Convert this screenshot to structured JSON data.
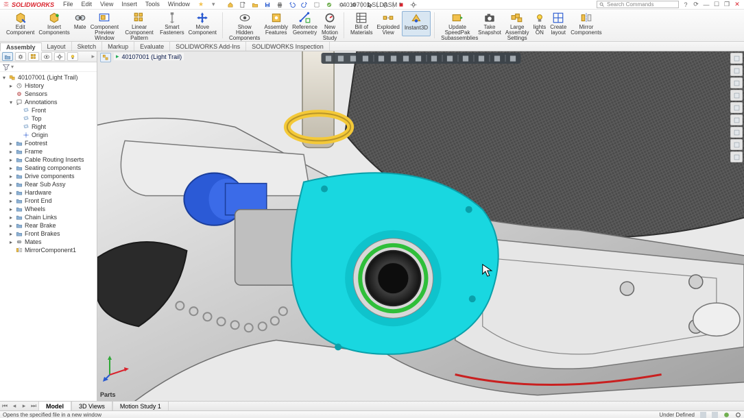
{
  "app": {
    "name": "SOLIDWORKS",
    "brand_color": "#d9232d"
  },
  "document": {
    "title": "40107001.SLDASM *"
  },
  "menu": [
    "File",
    "Edit",
    "View",
    "Insert",
    "Tools",
    "Window"
  ],
  "qat_icons": [
    "home",
    "new",
    "open",
    "save",
    "print",
    "undo",
    "redo",
    "select",
    "rebuild",
    "options",
    "settings",
    "|",
    "cursor",
    "|",
    "link",
    "|",
    "stop",
    "gear"
  ],
  "search": {
    "placeholder": "Search Commands"
  },
  "window_controls": [
    "help",
    "updates",
    "min",
    "max",
    "restore",
    "close"
  ],
  "ribbon": [
    {
      "grp": "edit",
      "buttons": [
        {
          "id": "edit-component",
          "label": "Edit\nComponent",
          "icon": "cube-edit"
        },
        {
          "id": "insert-components",
          "label": "Insert\nComponents",
          "icon": "cube-add"
        },
        {
          "id": "mate",
          "label": "Mate",
          "icon": "mate"
        },
        {
          "id": "component-preview-window",
          "label": "Component\nPreview\nWindow",
          "icon": "preview"
        },
        {
          "id": "linear-component-pattern",
          "label": "Linear Component\nPattern",
          "icon": "pattern"
        },
        {
          "id": "smart-fasteners",
          "label": "Smart\nFasteners",
          "icon": "bolt"
        },
        {
          "id": "move-component",
          "label": "Move\nComponent",
          "icon": "move"
        }
      ]
    },
    {
      "grp": "view",
      "buttons": [
        {
          "id": "show-hidden-components",
          "label": "Show\nHidden\nComponents",
          "icon": "eye"
        },
        {
          "id": "assembly-features",
          "label": "Assembly\nFeatures",
          "icon": "feat"
        },
        {
          "id": "reference-geometry",
          "label": "Reference\nGeometry",
          "icon": "refgeo"
        },
        {
          "id": "new-motion-study",
          "label": "New\nMotion\nStudy",
          "icon": "motion"
        }
      ]
    },
    {
      "grp": "bom",
      "buttons": [
        {
          "id": "bill-of-materials",
          "label": "Bill of\nMaterials",
          "icon": "bom"
        },
        {
          "id": "exploded-view",
          "label": "Exploded\nView",
          "icon": "explode"
        },
        {
          "id": "instant3d",
          "label": "Instant3D",
          "icon": "instant3d",
          "active": true
        }
      ]
    },
    {
      "grp": "large",
      "buttons": [
        {
          "id": "update-speedpak",
          "label": "Update\nSpeedPak\nSubassemblies",
          "icon": "speedpak"
        },
        {
          "id": "take-snapshot",
          "label": "Take\nSnapshot",
          "icon": "snapshot"
        },
        {
          "id": "large-assembly-settings",
          "label": "Large\nAssembly\nSettings",
          "icon": "largeasm"
        },
        {
          "id": "lights-on",
          "label": "lights\nON",
          "icon": "light"
        },
        {
          "id": "create-layout",
          "label": "Create\nlayout",
          "icon": "layout"
        },
        {
          "id": "mirror-components",
          "label": "Mirror\nComponents",
          "icon": "mirror"
        }
      ]
    }
  ],
  "command_tabs": {
    "active": 0,
    "items": [
      "Assembly",
      "Layout",
      "Sketch",
      "Markup",
      "Evaluate",
      "SOLIDWORKS Add-Ins",
      "SOLIDWORKS Inspection"
    ]
  },
  "feature_manager": {
    "panel_tabs": [
      "tree",
      "props",
      "config",
      "display",
      "appearance",
      "render"
    ],
    "root": "40107001 (Light Trail)",
    "nodes": [
      {
        "d": 1,
        "exp": "▸",
        "icon": "history",
        "label": "History"
      },
      {
        "d": 1,
        "exp": "",
        "icon": "sensor",
        "label": "Sensors"
      },
      {
        "d": 1,
        "exp": "▾",
        "icon": "anno",
        "label": "Annotations"
      },
      {
        "d": 2,
        "exp": "",
        "icon": "plane",
        "label": "Front"
      },
      {
        "d": 2,
        "exp": "",
        "icon": "plane",
        "label": "Top"
      },
      {
        "d": 2,
        "exp": "",
        "icon": "plane",
        "label": "Right"
      },
      {
        "d": 2,
        "exp": "",
        "icon": "origin",
        "label": "Origin"
      },
      {
        "d": 1,
        "exp": "▸",
        "icon": "folder",
        "label": "Footrest"
      },
      {
        "d": 1,
        "exp": "▸",
        "icon": "folder",
        "label": "Frame"
      },
      {
        "d": 1,
        "exp": "▸",
        "icon": "folder",
        "label": "Cable Routing Inserts"
      },
      {
        "d": 1,
        "exp": "▸",
        "icon": "folder",
        "label": "Seating components"
      },
      {
        "d": 1,
        "exp": "▸",
        "icon": "folder",
        "label": "Drive components"
      },
      {
        "d": 1,
        "exp": "▸",
        "icon": "folder",
        "label": "Rear Sub Assy"
      },
      {
        "d": 1,
        "exp": "▸",
        "icon": "folder",
        "label": "Hardware"
      },
      {
        "d": 1,
        "exp": "▸",
        "icon": "folder",
        "label": "Front End"
      },
      {
        "d": 1,
        "exp": "▸",
        "icon": "folder",
        "label": "Wheels"
      },
      {
        "d": 1,
        "exp": "▸",
        "icon": "folder",
        "label": "Chain Links"
      },
      {
        "d": 1,
        "exp": "▸",
        "icon": "folder",
        "label": "Rear Brake"
      },
      {
        "d": 1,
        "exp": "▸",
        "icon": "folder",
        "label": "Front Brakes"
      },
      {
        "d": 1,
        "exp": "▸",
        "icon": "mates",
        "label": "Mates"
      },
      {
        "d": 1,
        "exp": "",
        "icon": "mirror",
        "label": "MirrorComponent1"
      }
    ]
  },
  "viewport": {
    "breadcrumb": "40107001 (Light Trail)",
    "hud_icons": [
      "zoomfit",
      "zoomwin",
      "prev",
      "sec",
      "|",
      "wire",
      "hlr",
      "shade",
      "shadeedge",
      "|",
      "persp",
      "|",
      "scene",
      "|",
      "view",
      "|",
      "decal",
      "|",
      "grid",
      "|",
      "hide"
    ],
    "side_icons": [
      "sel-filter",
      "expand",
      "appearance",
      "display",
      "scene",
      "decal",
      "camera",
      "measure",
      "section"
    ],
    "parts_label": "Parts",
    "colors": {
      "plate": "#19d7e0",
      "spacer": "#2b5ad6",
      "ring_outer": "#f4c938",
      "ring_inner": "#2fbf3a",
      "seat_mesh": "#565656",
      "body": "#d9d9d9",
      "body_dark": "#9a9a9a",
      "wire": "#c92020"
    }
  },
  "view_tabs": {
    "active": 0,
    "label": "",
    "items": [
      "Model",
      "3D Views",
      "Motion Study 1"
    ]
  },
  "status": {
    "left": "Opens the specified file in a new window",
    "right": "Under Defined"
  }
}
